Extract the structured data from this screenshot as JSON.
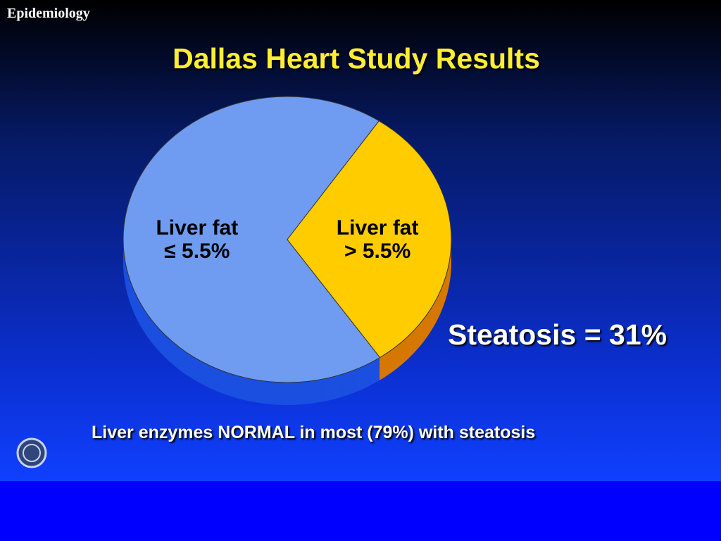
{
  "header": "Epidemiology",
  "chart_data": {
    "type": "pie",
    "title": "Dallas Heart Study Results",
    "categories": [
      "Liver fat\n≤ 5.5%",
      "Liver fat\n> 5.5%"
    ],
    "values": [
      69,
      31
    ],
    "colors": [
      "#6f9cf0",
      "#ffcc00"
    ],
    "side_colors": [
      "#1a4fe0",
      "#d67800"
    ],
    "annotation": "Steatosis = 31%",
    "footnote": "Liver enzymes NORMAL in most (79%) with steatosis"
  }
}
